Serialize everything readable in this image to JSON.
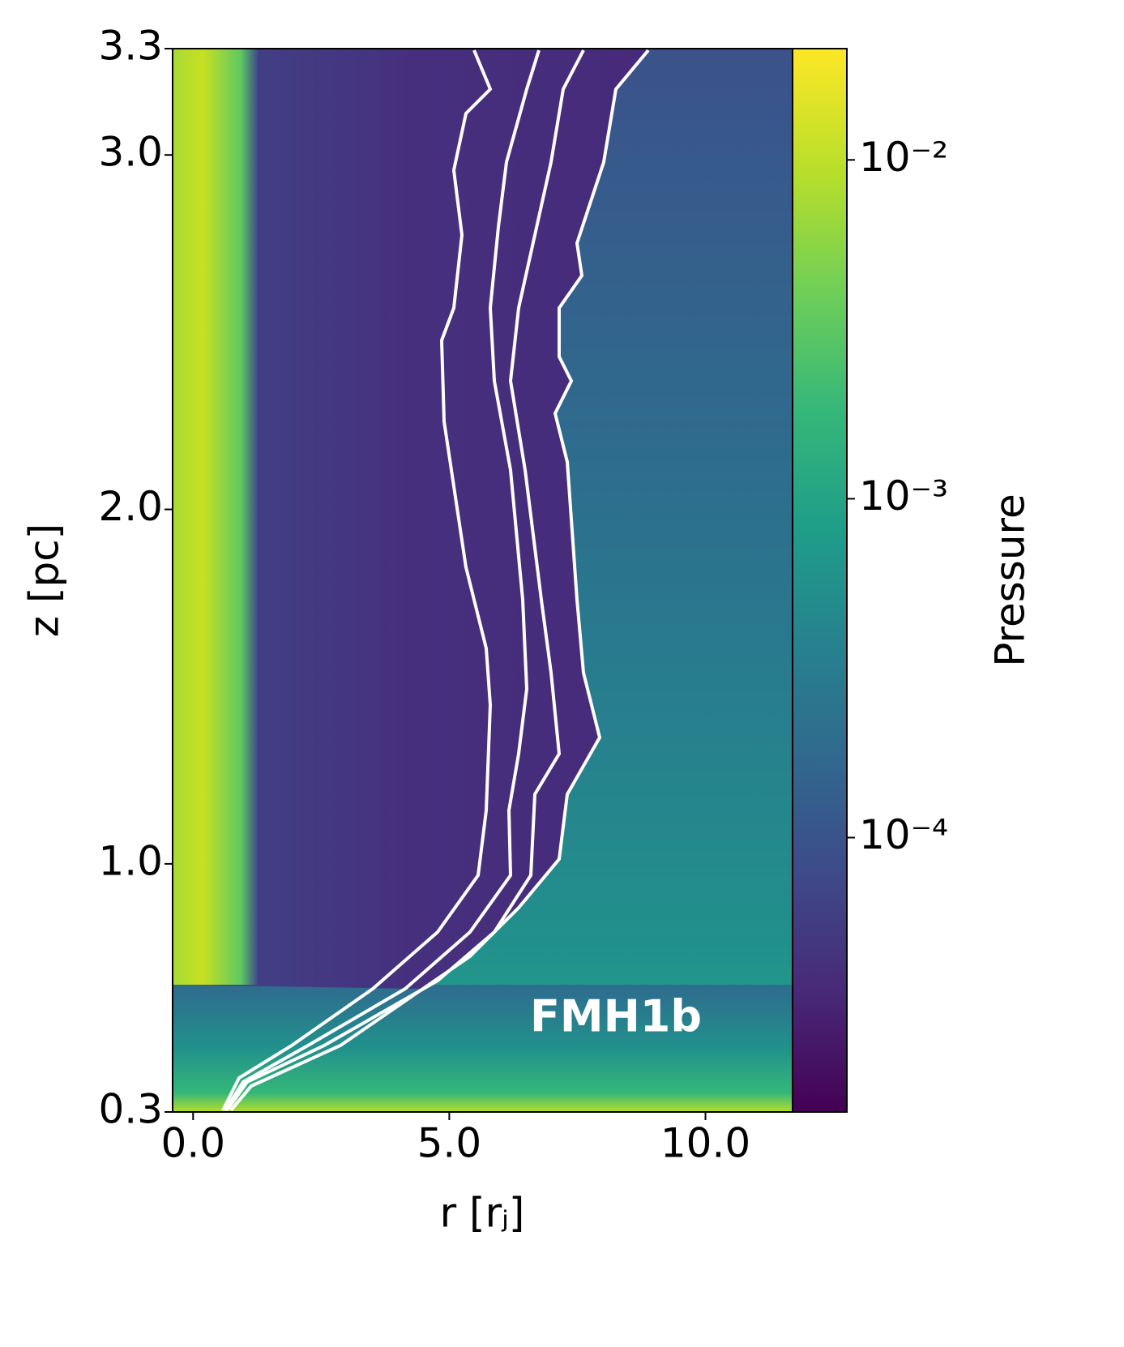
{
  "chart_data": {
    "type": "heatmap",
    "xlabel": "r [rⱼ]",
    "ylabel": "z [pc]",
    "annotation": "FMH1b",
    "xlim": [
      -0.4,
      11.7
    ],
    "xticks": [
      {
        "value": 0,
        "label": "0.0"
      },
      {
        "value": 5,
        "label": "5.0"
      },
      {
        "value": 10,
        "label": "10.0"
      }
    ],
    "ylim": [
      0.3,
      3.3
    ],
    "yticks": [
      0.3,
      {
        "value": 1,
        "label": "1.0"
      },
      {
        "value": 2,
        "label": "2.0"
      },
      {
        "value": 3,
        "label": "3.0"
      },
      3.3
    ],
    "colorbar": {
      "label": "Pressure",
      "scale": "log",
      "colormap": "viridis",
      "lim": [
        1.55e-05,
        0.0213
      ],
      "ticks": [
        {
          "value": 0.01,
          "label": "10⁻²"
        },
        {
          "value": 0.001,
          "label": "10⁻³"
        },
        {
          "value": 0.0001,
          "label": "10⁻⁴"
        }
      ]
    }
  }
}
